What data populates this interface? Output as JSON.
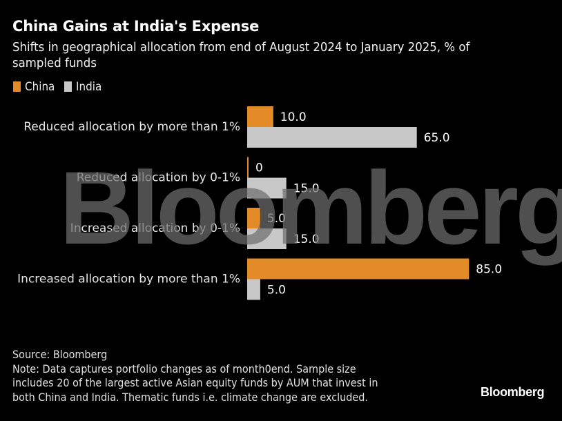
{
  "header": {
    "title": "China Gains at India's Expense",
    "subtitle": "Shifts in geographical allocation from end of August 2024 to January 2025, % of sampled funds"
  },
  "legend": [
    {
      "label": "China",
      "color": "#e38c27"
    },
    {
      "label": "India",
      "color": "#c8c8c8"
    }
  ],
  "chart_data": {
    "type": "bar",
    "orientation": "horizontal",
    "title": "China Gains at India's Expense",
    "subtitle": "Shifts in geographical allocation from end of August 2024 to January 2025, % of sampled funds",
    "categories": [
      "Reduced allocation by more than 1%",
      "Reduced allocation by 0-1%",
      "Increased allocation by 0-1%",
      "Increased allocation by more than 1%"
    ],
    "series": [
      {
        "name": "China",
        "color": "#e38c27",
        "values": [
          10.0,
          0,
          5.0,
          85.0
        ],
        "labels": [
          "10.0",
          "0",
          "5.0",
          "85.0"
        ]
      },
      {
        "name": "India",
        "color": "#c8c8c8",
        "values": [
          65.0,
          15.0,
          15.0,
          5.0
        ],
        "labels": [
          "65.0",
          "15.0",
          "15.0",
          "5.0"
        ]
      }
    ],
    "xlabel": "",
    "ylabel": "",
    "xlim": [
      0,
      85
    ],
    "grid": false,
    "legend_position": "top-left"
  },
  "watermark": "Bloomberg",
  "footer": {
    "source": "Source: Bloomberg",
    "note_lines": [
      "Note: Data captures portfolio changes as of month0end. Sample size",
      "includes 20 of the largest active Asian equity funds by AUM that invest in",
      "both China and India. Thematic funds i.e. climate change are excluded."
    ]
  },
  "brand": "Bloomberg"
}
